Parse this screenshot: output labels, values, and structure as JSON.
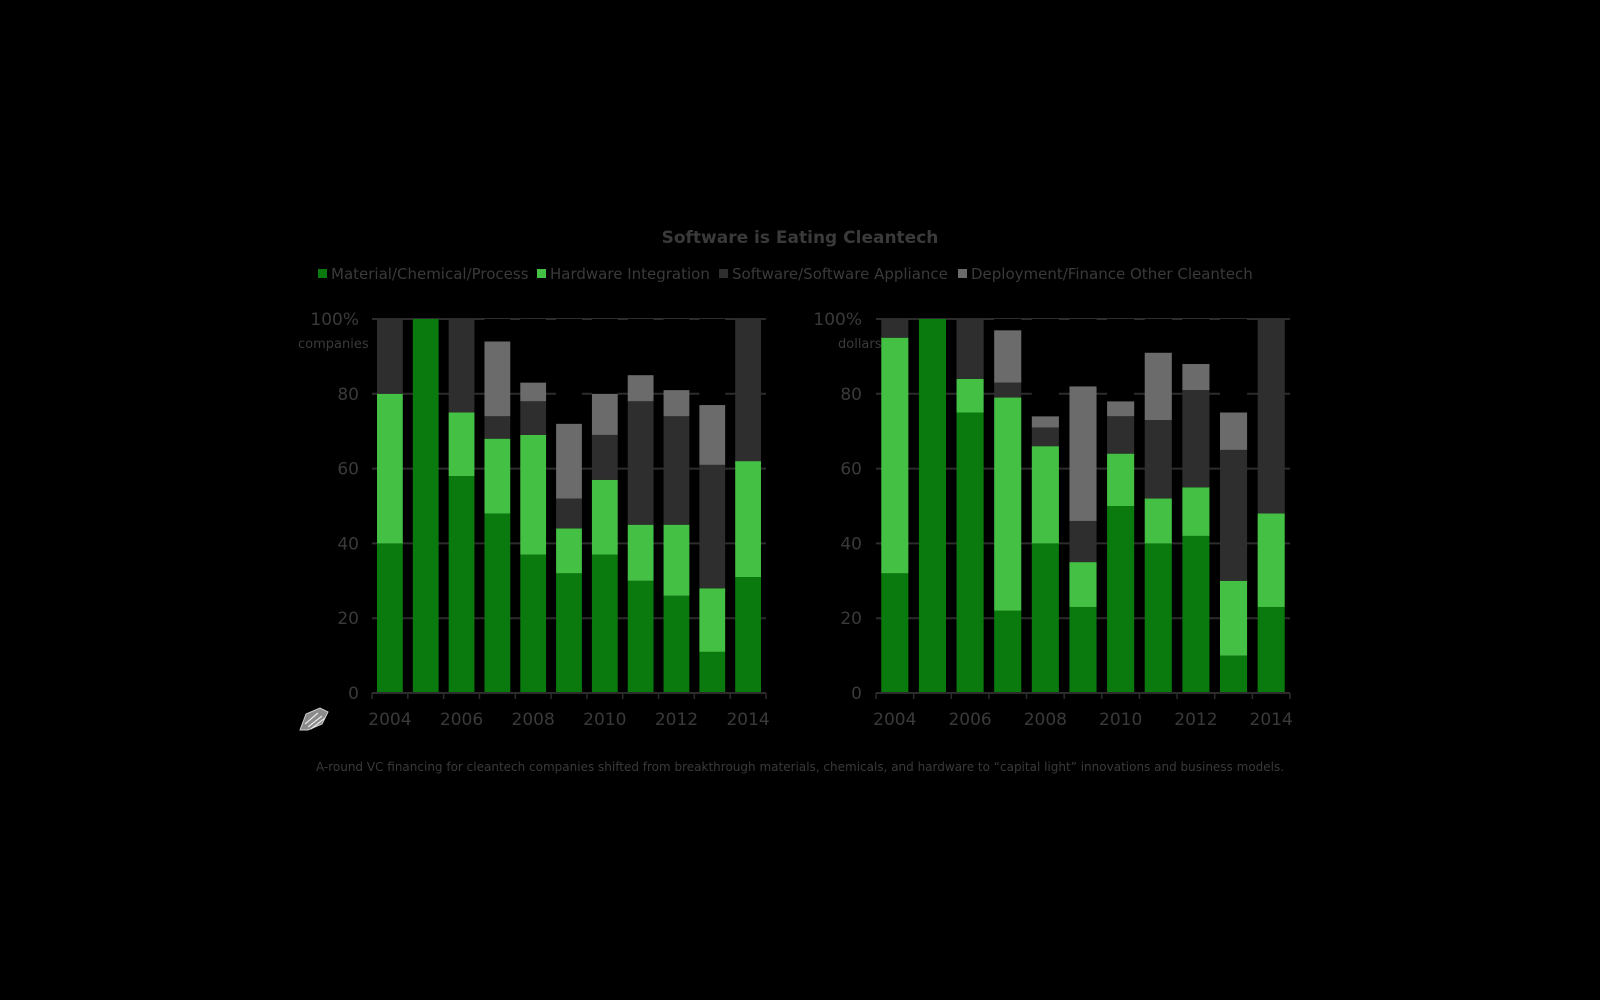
{
  "title": "Software is Eating Cleantech",
  "caption": "A-round VC financing for cleantech companies shifted from breakthrough materials, chemicals, and hardware to “capital light” innovations and business models.",
  "colors": {
    "background": "#000000",
    "text": "#3a3a3a",
    "gridline": "#2c2c2c",
    "material": "#0a7a0e",
    "hardware": "#44c044",
    "software": "#2e2e2e",
    "deployment": "#6b6b6b",
    "other": "#000000"
  },
  "legend": [
    {
      "label": "Material/Chemical/Process",
      "color": "#0a7a0e",
      "swatch": true
    },
    {
      "label": "Hardware Integration",
      "color": "#44c044",
      "swatch": true
    },
    {
      "label": "Software/Software Appliance",
      "color": "#2e2e2e",
      "swatch": true
    },
    {
      "label": "Deployment/Finance",
      "color": "#6b6b6b",
      "swatch": true
    },
    {
      "label": "Other Cleantech",
      "color": "#000000",
      "swatch": false
    }
  ],
  "chart_data": [
    {
      "type": "bar",
      "stacked": true,
      "ylabel_top": "100%",
      "ylabel_unit": "companies",
      "ylim": [
        0,
        100
      ],
      "yticks": [
        "0",
        "20",
        "40",
        "60",
        "80",
        "100%"
      ],
      "x": [
        2004,
        2005,
        2006,
        2007,
        2008,
        2009,
        2010,
        2011,
        2012,
        2013,
        2014
      ],
      "xtick_labels": [
        "2004",
        "2006",
        "2008",
        "2010",
        "2012",
        "2014"
      ],
      "grid": true,
      "legend_position": "top",
      "series": [
        {
          "name": "Material/Chemical/Process",
          "values": [
            40,
            100,
            58,
            48,
            37,
            32,
            37,
            30,
            26,
            11,
            31
          ]
        },
        {
          "name": "Hardware Integration",
          "values": [
            40,
            0,
            17,
            20,
            32,
            12,
            20,
            15,
            19,
            17,
            31
          ]
        },
        {
          "name": "Software/Software Appliance",
          "values": [
            20,
            0,
            25,
            6,
            9,
            8,
            12,
            33,
            29,
            33,
            38
          ]
        },
        {
          "name": "Deployment/Finance",
          "values": [
            0,
            0,
            0,
            20,
            5,
            20,
            11,
            7,
            7,
            16,
            0
          ]
        },
        {
          "name": "Other Cleantech",
          "values": [
            0,
            0,
            0,
            6,
            17,
            28,
            20,
            15,
            19,
            23,
            0
          ]
        }
      ]
    },
    {
      "type": "bar",
      "stacked": true,
      "ylabel_top": "100%",
      "ylabel_unit": "dollars",
      "ylim": [
        0,
        100
      ],
      "yticks": [
        "0",
        "20",
        "40",
        "60",
        "80",
        "100%"
      ],
      "x": [
        2004,
        2005,
        2006,
        2007,
        2008,
        2009,
        2010,
        2011,
        2012,
        2013,
        2014
      ],
      "xtick_labels": [
        "2004",
        "2006",
        "2008",
        "2010",
        "2012",
        "2014"
      ],
      "grid": true,
      "legend_position": "top",
      "series": [
        {
          "name": "Material/Chemical/Process",
          "values": [
            32,
            100,
            75,
            22,
            40,
            23,
            50,
            40,
            42,
            10,
            23
          ]
        },
        {
          "name": "Hardware Integration",
          "values": [
            63,
            0,
            9,
            57,
            26,
            12,
            14,
            12,
            13,
            20,
            25
          ]
        },
        {
          "name": "Software/Software Appliance",
          "values": [
            5,
            0,
            16,
            4,
            5,
            11,
            10,
            21,
            26,
            35,
            52
          ]
        },
        {
          "name": "Deployment/Finance",
          "values": [
            0,
            0,
            0,
            14,
            3,
            36,
            4,
            18,
            7,
            10,
            0
          ]
        },
        {
          "name": "Other Cleantech",
          "values": [
            0,
            0,
            0,
            3,
            26,
            18,
            22,
            9,
            12,
            25,
            0
          ]
        }
      ]
    }
  ]
}
